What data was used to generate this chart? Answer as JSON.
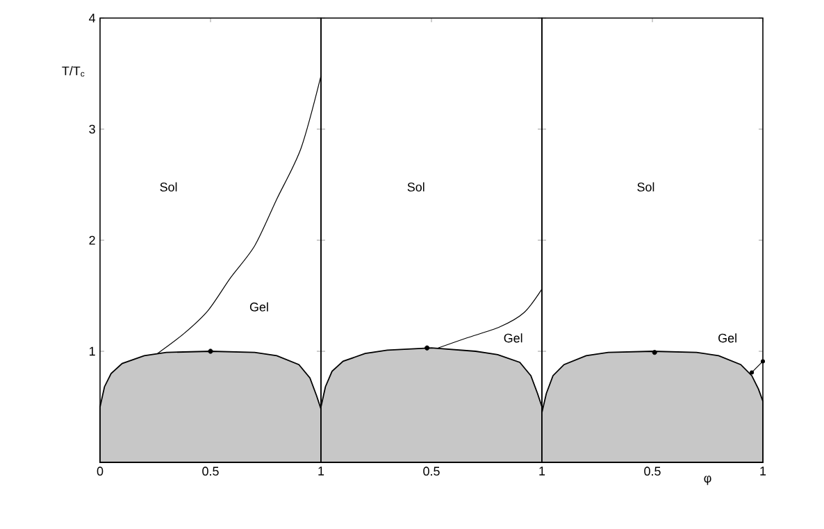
{
  "chart_data": [
    {
      "type": "line",
      "ylabel": "T/T$_{c}$",
      "xlim": [
        0,
        1
      ],
      "ylim": [
        0,
        4
      ],
      "xticks": [
        0,
        0.5,
        1
      ],
      "yticks": [
        1,
        2,
        3,
        4
      ],
      "annotations": [
        "Sol",
        "Gel"
      ],
      "series": [
        {
          "type": "area",
          "color": "#000000",
          "x": [
            0,
            0.02,
            0.05,
            0.1,
            0.2,
            0.3,
            0.5,
            0.7,
            0.8,
            0.9,
            0.95,
            0.98,
            1
          ],
          "values": [
            0.5,
            0.68,
            0.8,
            0.89,
            0.96,
            0.99,
            1.0,
            0.99,
            0.96,
            0.88,
            0.76,
            0.6,
            0.48
          ]
        },
        {
          "color": "#000000",
          "x": [
            0.26,
            0.38,
            0.49,
            0.59,
            0.7,
            0.8,
            0.91,
            1.0
          ],
          "values": [
            0.98,
            1.16,
            1.37,
            1.66,
            1.95,
            2.37,
            2.83,
            3.48
          ]
        },
        {
          "type": "scatter",
          "marker": "circle",
          "color": "#000000",
          "x": [
            0.5
          ],
          "values": [
            1.0
          ]
        }
      ]
    },
    {
      "type": "line",
      "xlim": [
        0,
        1
      ],
      "ylim": [
        0,
        4
      ],
      "xticks": [
        0.5,
        1
      ],
      "yticks": [
        1,
        2,
        3,
        4
      ],
      "tick_labels": "x",
      "annotations": [
        "Sol",
        "Gel"
      ],
      "series": [
        {
          "type": "area",
          "color": "#000000",
          "x": [
            0,
            0.02,
            0.05,
            0.1,
            0.2,
            0.3,
            0.5,
            0.7,
            0.8,
            0.9,
            0.95,
            0.98,
            1
          ],
          "values": [
            0.5,
            0.68,
            0.82,
            0.91,
            0.98,
            1.01,
            1.03,
            1.0,
            0.97,
            0.9,
            0.78,
            0.62,
            0.5
          ]
        },
        {
          "color": "#000000",
          "x": [
            0.53,
            0.66,
            0.81,
            0.92,
            1.0
          ],
          "values": [
            1.03,
            1.12,
            1.22,
            1.35,
            1.56
          ]
        },
        {
          "type": "scatter",
          "marker": "circle",
          "color": "#000000",
          "x": [
            0.48
          ],
          "values": [
            1.03
          ]
        }
      ]
    },
    {
      "type": "line",
      "xlabel": "φ",
      "xlim": [
        0,
        1
      ],
      "ylim": [
        0,
        4
      ],
      "xticks": [
        0.5,
        1
      ],
      "yticks": [
        1,
        2,
        3,
        4
      ],
      "tick_labels": "x",
      "annotations": [
        "Sol",
        "Gel"
      ],
      "series": [
        {
          "type": "area",
          "color": "#000000",
          "x": [
            0,
            0.02,
            0.05,
            0.1,
            0.2,
            0.3,
            0.5,
            0.7,
            0.8,
            0.9,
            0.95,
            0.98,
            1
          ],
          "values": [
            0.45,
            0.62,
            0.78,
            0.88,
            0.96,
            0.99,
            1.0,
            0.99,
            0.96,
            0.88,
            0.78,
            0.66,
            0.55
          ]
        },
        {
          "marker": "circle",
          "color": "#000000",
          "x": [
            0.95,
            1.0
          ],
          "values": [
            0.81,
            0.91
          ]
        },
        {
          "type": "scatter",
          "marker": "circle",
          "color": "#000000",
          "x": [
            0.51
          ],
          "values": [
            0.99
          ]
        }
      ]
    }
  ]
}
